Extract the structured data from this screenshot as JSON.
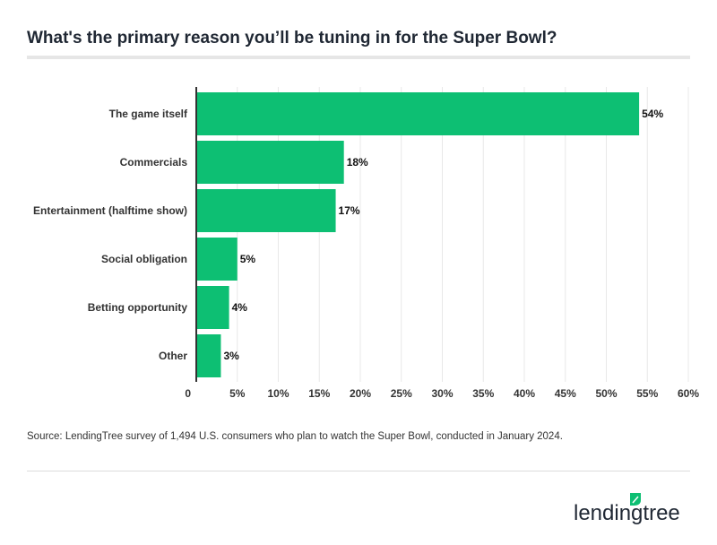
{
  "title": "What's the primary reason you’ll be tuning in for the Super Bowl?",
  "source": "Source: LendingTree survey of 1,494 U.S. consumers who plan to watch the Super Bowl, conducted in January 2024.",
  "logo_text": "lendingtree",
  "chart_data": {
    "type": "bar",
    "orientation": "horizontal",
    "categories": [
      "The game itself",
      "Commercials",
      "Entertainment (halftime show)",
      "Social obligation",
      "Betting opportunity",
      "Other"
    ],
    "values": [
      54,
      18,
      17,
      5,
      4,
      3
    ],
    "data_labels": [
      "54%",
      "18%",
      "17%",
      "5%",
      "4%",
      "3%"
    ],
    "xlim": [
      0,
      60
    ],
    "xticks": [
      "0",
      "5%",
      "10%",
      "15%",
      "20%",
      "25%",
      "30%",
      "35%",
      "40%",
      "45%",
      "50%",
      "55%",
      "60%"
    ],
    "grid": true,
    "bar_color": "#0dbf73"
  }
}
